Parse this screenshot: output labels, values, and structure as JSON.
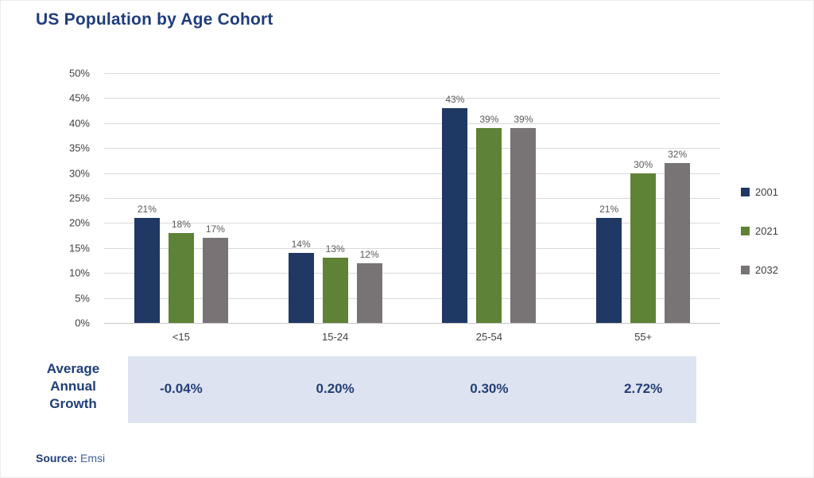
{
  "page": {
    "title": "US Population by Age Cohort",
    "source_label": "Source:",
    "source_value": "Emsi"
  },
  "colors": {
    "title_navy": "#1f3d7a",
    "series_2001": "#1f3864",
    "series_2021": "#5e8236",
    "series_2032": "#787375",
    "gridline": "#d9d9d9",
    "value_label": "#595959",
    "growth_band_fill": "#dee3f1",
    "growth_text": "#243f77"
  },
  "chart_data": {
    "type": "bar",
    "title": "US Population by Age Cohort",
    "categories": [
      "<15",
      "15-24",
      "25-54",
      "55+"
    ],
    "series": [
      {
        "name": "2001",
        "color": "#1f3864",
        "values": [
          21,
          14,
          43,
          21
        ]
      },
      {
        "name": "2021",
        "color": "#5e8236",
        "values": [
          18,
          13,
          39,
          30
        ]
      },
      {
        "name": "2032",
        "color": "#787375",
        "values": [
          17,
          12,
          39,
          32
        ]
      }
    ],
    "value_suffix": "%",
    "xlabel": "",
    "ylabel": "",
    "ylim": [
      0,
      50
    ],
    "ytick_step": 5,
    "ytick_suffix": "%",
    "grid": true,
    "legend_position": "right",
    "growth_row": {
      "label_lines": [
        "Average",
        "Annual",
        "Growth"
      ],
      "values": [
        "-0.04%",
        "0.20%",
        "0.30%",
        "2.72%"
      ]
    }
  }
}
